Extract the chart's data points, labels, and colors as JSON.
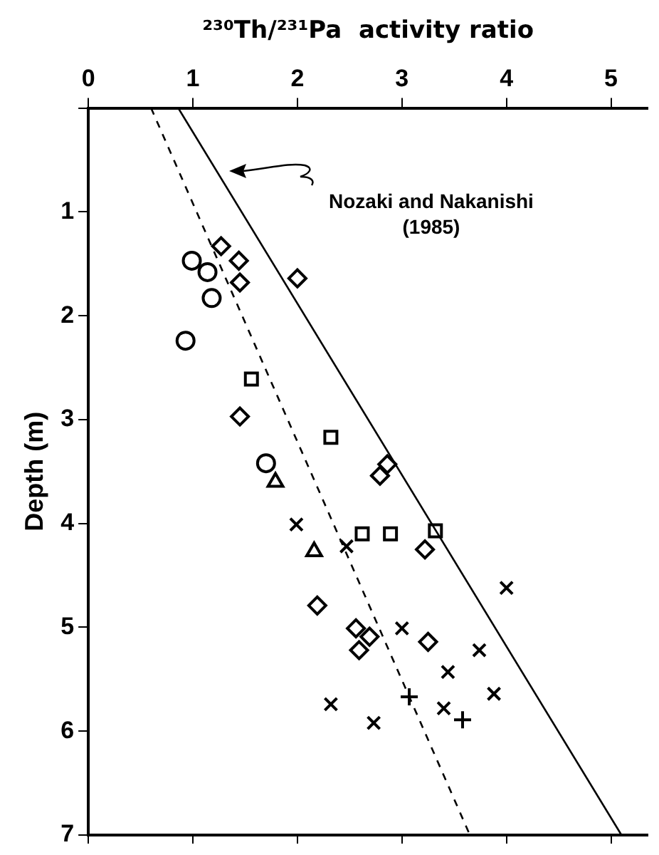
{
  "chart_data": {
    "type": "scatter",
    "xlabel": "²³⁰Th/²³¹Pa  activity ratio",
    "ylabel": "Depth (m)",
    "xlim": [
      0,
      5.35
    ],
    "xticks": [
      0,
      1,
      2,
      3,
      4,
      5
    ],
    "ylim": [
      7,
      0
    ],
    "yticks": [
      {
        "value": 0,
        "label": null
      },
      1,
      2,
      3,
      4,
      5,
      6,
      7
    ],
    "grid": false,
    "legend": false,
    "series": [
      {
        "color": "#000000",
        "marker": "diamond",
        "x": [
          1.27,
          1.44,
          1.45,
          2.0,
          1.45,
          2.19,
          2.59
        ],
        "values": [
          1.33,
          1.47,
          1.68,
          1.64,
          2.97,
          4.79,
          5.22
        ]
      },
      {
        "color": "#000000",
        "marker": "diamond",
        "x": [
          2.86,
          2.79,
          3.22,
          2.56,
          2.69,
          3.25
        ],
        "values": [
          3.43,
          3.54,
          4.25,
          5.01,
          5.09,
          5.14
        ]
      },
      {
        "color": "#000000",
        "marker": "circle",
        "x": [
          0.99,
          1.14,
          1.7
        ],
        "values": [
          1.47,
          1.58,
          3.42
        ]
      },
      {
        "color": "#000000",
        "marker": "circle",
        "x": [
          1.18,
          0.93
        ],
        "values": [
          1.83,
          2.24
        ]
      },
      {
        "color": "#000000",
        "marker": "square",
        "x": [
          1.56,
          2.32
        ],
        "values": [
          2.61,
          3.17
        ]
      },
      {
        "color": "#000000",
        "marker": "square",
        "x": [
          2.62,
          2.89,
          3.32
        ],
        "values": [
          4.1,
          4.1,
          4.07
        ]
      },
      {
        "color": "#000000",
        "marker": "triangle",
        "x": [
          1.79,
          2.16
        ],
        "values": [
          3.6,
          4.27
        ]
      },
      {
        "color": "#000000",
        "marker": "cross",
        "x": [
          1.99,
          2.47,
          4.0,
          3.0,
          3.74,
          3.44,
          3.88,
          3.4
        ],
        "values": [
          4.01,
          4.22,
          4.62,
          5.01,
          5.22,
          5.43,
          5.64,
          5.78
        ]
      },
      {
        "color": "#000000",
        "marker": "plus",
        "x": [
          3.07,
          3.58
        ],
        "values": [
          5.67,
          5.89
        ]
      },
      {
        "color": "#000000",
        "marker": "cross",
        "x": [
          2.32,
          2.73
        ],
        "values": [
          5.74,
          5.92
        ]
      },
      {
        "type": "line",
        "color": "#000000",
        "line_style": "solid",
        "marker": "none",
        "x": [
          0.86,
          5.1
        ],
        "values": [
          0,
          7
        ]
      },
      {
        "type": "line",
        "color": "#000000",
        "line_style": "dashed",
        "marker": "none",
        "x": [
          0.6,
          3.65
        ],
        "values": [
          0,
          7
        ]
      }
    ],
    "annotations": [
      "Nozaki and Nakanishi\n(1985)"
    ]
  }
}
